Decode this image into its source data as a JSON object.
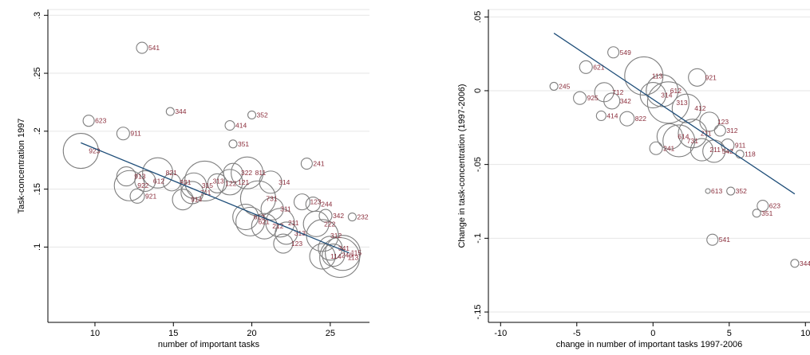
{
  "chart_data": [
    {
      "type": "scatter",
      "title": "",
      "xlabel": "number of important tasks",
      "ylabel": "Task-concentration 1997",
      "xlim": [
        7,
        27.5
      ],
      "ylim": [
        0.035,
        0.305
      ],
      "xticks": [
        10,
        15,
        20,
        25
      ],
      "xtick_labels": [
        "10",
        "15",
        "20",
        "25"
      ],
      "yticks": [
        0.1,
        0.15,
        0.2,
        0.25,
        0.3
      ],
      "ytick_labels": [
        ".1",
        ".15",
        ".2",
        ".25",
        ".3"
      ],
      "grid": "horizontal",
      "fit_line": {
        "x1": 9.1,
        "y1": 0.19,
        "x2": 26.2,
        "y2": 0.095
      },
      "points": [
        {
          "label": "541",
          "x": 13.0,
          "y": 0.272,
          "size": 7
        },
        {
          "label": "623",
          "x": 9.6,
          "y": 0.209,
          "size": 7
        },
        {
          "label": "911",
          "x": 11.8,
          "y": 0.198,
          "size": 8
        },
        {
          "label": "923",
          "x": 9.1,
          "y": 0.183,
          "size": 22
        },
        {
          "label": "344",
          "x": 14.8,
          "y": 0.217,
          "size": 5
        },
        {
          "label": "414",
          "x": 18.6,
          "y": 0.205,
          "size": 6
        },
        {
          "label": "352",
          "x": 20.0,
          "y": 0.214,
          "size": 5
        },
        {
          "label": "351",
          "x": 18.8,
          "y": 0.189,
          "size": 5
        },
        {
          "label": "241",
          "x": 23.5,
          "y": 0.172,
          "size": 7
        },
        {
          "label": "913",
          "x": 12.0,
          "y": 0.161,
          "size": 12
        },
        {
          "label": "922",
          "x": 12.2,
          "y": 0.153,
          "size": 19
        },
        {
          "label": "921",
          "x": 12.7,
          "y": 0.144,
          "size": 9
        },
        {
          "label": "612",
          "x": 13.2,
          "y": 0.157,
          "size": 13
        },
        {
          "label": "821",
          "x": 14.0,
          "y": 0.164,
          "size": 19
        },
        {
          "label": "931",
          "x": 14.9,
          "y": 0.156,
          "size": 11
        },
        {
          "label": "914",
          "x": 15.6,
          "y": 0.141,
          "size": 13
        },
        {
          "label": "711",
          "x": 16.2,
          "y": 0.147,
          "size": 14
        },
        {
          "label": "315",
          "x": 16.3,
          "y": 0.153,
          "size": 16
        },
        {
          "label": "313",
          "x": 17.0,
          "y": 0.157,
          "size": 25
        },
        {
          "label": "122",
          "x": 17.8,
          "y": 0.155,
          "size": 12
        },
        {
          "label": "121",
          "x": 18.6,
          "y": 0.156,
          "size": 16
        },
        {
          "label": "322",
          "x": 18.8,
          "y": 0.164,
          "size": 12
        },
        {
          "label": "811",
          "x": 19.7,
          "y": 0.164,
          "size": 20
        },
        {
          "label": "314",
          "x": 21.2,
          "y": 0.156,
          "size": 14
        },
        {
          "label": "731",
          "x": 20.4,
          "y": 0.142,
          "size": 22
        },
        {
          "label": "613",
          "x": 19.6,
          "y": 0.126,
          "size": 16
        },
        {
          "label": "621",
          "x": 19.9,
          "y": 0.122,
          "size": 18
        },
        {
          "label": "212",
          "x": 20.8,
          "y": 0.118,
          "size": 16
        },
        {
          "label": "311",
          "x": 21.3,
          "y": 0.133,
          "size": 14
        },
        {
          "label": "211",
          "x": 21.8,
          "y": 0.121,
          "size": 18
        },
        {
          "label": "313",
          "x": 22.2,
          "y": 0.112,
          "size": 14
        },
        {
          "label": "123",
          "x": 22.0,
          "y": 0.103,
          "size": 12
        },
        {
          "label": "123",
          "x": 23.2,
          "y": 0.139,
          "size": 10
        },
        {
          "label": "244",
          "x": 23.9,
          "y": 0.137,
          "size": 9
        },
        {
          "label": "222",
          "x": 24.1,
          "y": 0.12,
          "size": 16
        },
        {
          "label": "312",
          "x": 24.5,
          "y": 0.11,
          "size": 20
        },
        {
          "label": "342",
          "x": 24.7,
          "y": 0.127,
          "size": 8
        },
        {
          "label": "232",
          "x": 26.4,
          "y": 0.126,
          "size": 5
        },
        {
          "label": "341",
          "x": 25.0,
          "y": 0.099,
          "size": 15
        },
        {
          "label": "115",
          "x": 25.8,
          "y": 0.095,
          "size": 22
        },
        {
          "label": "113",
          "x": 25.6,
          "y": 0.091,
          "size": 25
        },
        {
          "label": "114",
          "x": 24.5,
          "y": 0.092,
          "size": 16
        },
        {
          "label": "246",
          "x": 25.2,
          "y": 0.093,
          "size": 14
        }
      ]
    },
    {
      "type": "scatter",
      "title": "",
      "xlabel": "change in number of important tasks 1997-2006",
      "ylabel": "Change in task-concentration (1997-2006)",
      "xlim": [
        -10.8,
        10.3
      ],
      "ylim": [
        -0.157,
        0.055
      ],
      "xticks": [
        -10,
        -5,
        0,
        5,
        10
      ],
      "xtick_labels": [
        "-10",
        "-5",
        "0",
        "5",
        "10"
      ],
      "yticks": [
        -0.15,
        -0.1,
        -0.05,
        0,
        0.05
      ],
      "ytick_labels": [
        "-.15",
        "-.1",
        "-.05",
        "0",
        ".05"
      ],
      "grid": "horizontal",
      "fit_line": {
        "x1": -6.5,
        "y1": 0.039,
        "x2": 9.3,
        "y2": -0.07
      },
      "points": [
        {
          "label": "549",
          "x": -2.6,
          "y": 0.026,
          "size": 7
        },
        {
          "label": "621",
          "x": -4.4,
          "y": 0.016,
          "size": 8
        },
        {
          "label": "245",
          "x": -6.5,
          "y": 0.003,
          "size": 5
        },
        {
          "label": "925",
          "x": -4.8,
          "y": -0.005,
          "size": 8
        },
        {
          "label": "712",
          "x": -3.2,
          "y": -0.001,
          "size": 12
        },
        {
          "label": "342",
          "x": -2.7,
          "y": -0.007,
          "size": 10
        },
        {
          "label": "414",
          "x": -3.4,
          "y": -0.017,
          "size": 6
        },
        {
          "label": "822",
          "x": -1.7,
          "y": -0.019,
          "size": 9
        },
        {
          "label": "921",
          "x": 2.9,
          "y": 0.009,
          "size": 11
        },
        {
          "label": "113",
          "x": -0.6,
          "y": 0.01,
          "size": 24
        },
        {
          "label": "612",
          "x": 0.6,
          "y": 0.0,
          "size": 20
        },
        {
          "label": "314",
          "x": 0.0,
          "y": -0.003,
          "size": 16
        },
        {
          "label": "313",
          "x": 1.0,
          "y": -0.008,
          "size": 26
        },
        {
          "label": "412",
          "x": 2.2,
          "y": -0.012,
          "size": 18
        },
        {
          "label": "312",
          "x": 4.4,
          "y": -0.027,
          "size": 7
        },
        {
          "label": "123",
          "x": 3.7,
          "y": -0.021,
          "size": 12
        },
        {
          "label": "211",
          "x": 2.6,
          "y": -0.029,
          "size": 18
        },
        {
          "label": "614",
          "x": 1.1,
          "y": -0.031,
          "size": 16
        },
        {
          "label": "241",
          "x": 0.2,
          "y": -0.039,
          "size": 8
        },
        {
          "label": "731",
          "x": 1.7,
          "y": -0.034,
          "size": 20
        },
        {
          "label": "911",
          "x": 4.9,
          "y": -0.037,
          "size": 8
        },
        {
          "label": "542",
          "x": 4.0,
          "y": -0.041,
          "size": 14
        },
        {
          "label": "118",
          "x": 5.7,
          "y": -0.043,
          "size": 5
        },
        {
          "label": "211",
          "x": 3.2,
          "y": -0.04,
          "size": 14
        },
        {
          "label": "613",
          "x": 3.6,
          "y": -0.068,
          "size": 3
        },
        {
          "label": "352",
          "x": 5.1,
          "y": -0.068,
          "size": 5
        },
        {
          "label": "623",
          "x": 7.2,
          "y": -0.078,
          "size": 7
        },
        {
          "label": "351",
          "x": 6.8,
          "y": -0.083,
          "size": 5
        },
        {
          "label": "541",
          "x": 3.9,
          "y": -0.101,
          "size": 7
        },
        {
          "label": "344",
          "x": 9.3,
          "y": -0.117,
          "size": 5
        }
      ]
    }
  ]
}
